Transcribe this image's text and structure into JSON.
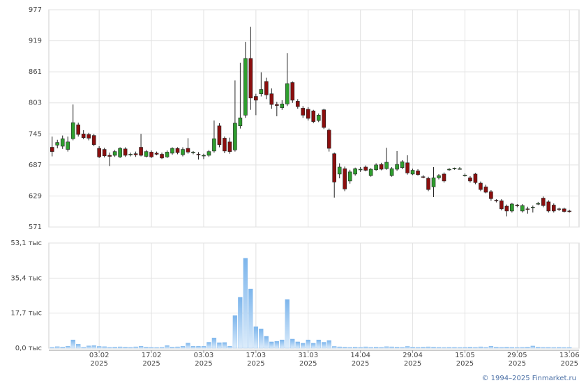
{
  "chart_data": {
    "type": "candlestick",
    "categories": [
      null,
      null,
      null,
      null,
      null,
      null,
      null,
      null,
      null,
      "03.02\n2025",
      null,
      null,
      null,
      null,
      null,
      null,
      null,
      null,
      null,
      "17.02\n2025",
      null,
      null,
      null,
      null,
      null,
      null,
      null,
      null,
      null,
      "03.03\n2025",
      null,
      null,
      null,
      null,
      null,
      null,
      null,
      null,
      null,
      "17.03\n2025",
      null,
      null,
      null,
      null,
      null,
      null,
      null,
      null,
      null,
      "31.03\n2025",
      null,
      null,
      null,
      null,
      null,
      null,
      null,
      null,
      null,
      "14.04\n2025",
      null,
      null,
      null,
      null,
      null,
      null,
      null,
      null,
      null,
      "29.04\n2025",
      null,
      null,
      null,
      null,
      null,
      null,
      null,
      null,
      null,
      "15.05\n2025",
      null,
      null,
      null,
      null,
      null,
      null,
      null,
      null,
      null,
      "29.05\n2025",
      null,
      null,
      null,
      null,
      null,
      null,
      null,
      null,
      null,
      "13.06\n2025"
    ],
    "open": [
      720,
      724,
      722,
      716,
      736,
      762,
      745,
      744,
      742,
      718,
      716,
      705,
      705,
      702,
      717,
      706,
      708,
      720,
      703,
      711,
      709,
      707,
      702,
      709,
      718,
      706,
      718,
      710,
      707,
      705,
      705,
      713,
      760,
      737,
      730,
      715,
      760,
      780,
      886,
      815,
      820,
      843,
      820,
      800,
      794,
      801,
      841,
      806,
      793,
      791,
      788,
      770,
      790,
      752,
      708,
      670,
      680,
      657,
      670,
      678,
      683,
      667,
      678,
      688,
      680,
      667,
      679,
      682,
      691,
      670,
      676,
      665,
      662,
      646,
      663,
      670,
      678,
      680,
      680,
      668,
      663,
      670,
      653,
      646,
      637,
      621,
      620,
      610,
      601,
      612,
      601,
      605,
      608,
      615,
      625,
      618,
      612,
      605,
      605,
      601
    ],
    "high": [
      740,
      734,
      742,
      740,
      800,
      766,
      752,
      747,
      745,
      722,
      719,
      710,
      715,
      720,
      720,
      710,
      712,
      745,
      715,
      714,
      712,
      710,
      714,
      720,
      720,
      720,
      737,
      713,
      711,
      708,
      715,
      770,
      765,
      740,
      738,
      845,
      878,
      917,
      945,
      820,
      860,
      850,
      830,
      805,
      808,
      896,
      843,
      810,
      797,
      795,
      790,
      783,
      792,
      755,
      710,
      690,
      684,
      678,
      682,
      683,
      686,
      681,
      690,
      691,
      719,
      683,
      713,
      696,
      705,
      680,
      679,
      668,
      665,
      683,
      670,
      673,
      681,
      682,
      683,
      671,
      666,
      672,
      656,
      650,
      640,
      623,
      623,
      613,
      616,
      614,
      614,
      609,
      611,
      618,
      628,
      621,
      615,
      607,
      607,
      603
    ],
    "low": [
      703,
      718,
      717,
      712,
      733,
      740,
      735,
      733,
      722,
      700,
      701,
      685,
      702,
      700,
      702,
      703,
      702,
      703,
      701,
      700,
      705,
      698,
      700,
      706,
      707,
      703,
      708,
      707,
      697,
      698,
      702,
      710,
      720,
      709,
      708,
      712,
      755,
      775,
      790,
      780,
      815,
      810,
      792,
      778,
      790,
      797,
      803,
      792,
      775,
      770,
      765,
      767,
      754,
      712,
      626,
      662,
      638,
      652,
      667,
      674,
      675,
      665,
      676,
      677,
      678,
      665,
      676,
      679,
      669,
      668,
      667,
      662,
      638,
      627,
      660,
      654,
      676,
      678,
      679,
      665,
      654,
      651,
      638,
      634,
      620,
      617,
      602,
      591,
      598,
      608,
      598,
      596,
      598,
      612,
      608,
      598,
      598,
      601,
      598,
      598
    ],
    "close": [
      712,
      729,
      736,
      730,
      766,
      744,
      738,
      737,
      725,
      702,
      704,
      703,
      712,
      718,
      705,
      707,
      706,
      705,
      712,
      702,
      707,
      700,
      711,
      718,
      710,
      716,
      711,
      711,
      706,
      705,
      712,
      736,
      725,
      713,
      712,
      765,
      775,
      886,
      812,
      808,
      828,
      818,
      800,
      798,
      801,
      839,
      808,
      796,
      780,
      774,
      768,
      780,
      757,
      718,
      655,
      683,
      642,
      674,
      680,
      679,
      677,
      679,
      687,
      679,
      692,
      680,
      688,
      693,
      672,
      677,
      669,
      664,
      641,
      663,
      667,
      657,
      679,
      681,
      680,
      668,
      657,
      654,
      641,
      636,
      624,
      620,
      605,
      601,
      614,
      611,
      611,
      604,
      608,
      615,
      611,
      601,
      601,
      604,
      600,
      600
    ],
    "up_color": "#2e9e2e",
    "down_color": "#8b0e0e",
    "ylim": [
      571,
      977
    ],
    "yticks": [
      571,
      629,
      687,
      745,
      803,
      861,
      919,
      977
    ],
    "grid": true,
    "volume": {
      "type": "bar",
      "color": "#7cb5ec",
      "values": [
        0.5,
        0.8,
        0.6,
        1.0,
        4.2,
        2.0,
        0.5,
        1.2,
        1.3,
        0.9,
        0.8,
        0.5,
        0.6,
        0.7,
        0.6,
        0.5,
        0.7,
        1.0,
        0.6,
        0.5,
        0.4,
        0.5,
        1.3,
        0.6,
        0.7,
        1.0,
        2.6,
        1.0,
        1.0,
        1.0,
        3.0,
        5.2,
        2.8,
        2.9,
        1.0,
        16.5,
        25.7,
        45.4,
        29.9,
        10.9,
        9.8,
        6.0,
        3.2,
        3.5,
        4.2,
        24.6,
        4.6,
        3.2,
        2.5,
        4.2,
        2.5,
        4.2,
        3.0,
        3.9,
        0.9,
        0.7,
        0.6,
        0.5,
        0.6,
        0.5,
        0.7,
        0.5,
        0.6,
        0.5,
        0.8,
        0.7,
        0.6,
        0.5,
        0.9,
        0.6,
        0.5,
        0.6,
        0.7,
        0.6,
        0.5,
        0.4,
        0.5,
        0.5,
        0.4,
        0.5,
        0.6,
        0.5,
        0.7,
        0.5,
        1.0,
        0.6,
        0.5,
        0.6,
        0.5,
        0.4,
        0.5,
        0.6,
        1.1,
        0.6,
        0.5,
        0.5,
        0.4,
        0.5,
        0.4,
        0.4
      ],
      "ylim": [
        0,
        53.1
      ],
      "yticks": [
        {
          "value": 0,
          "label": "0,0 тыс"
        },
        {
          "value": 17.7,
          "label": "17,7 тыс"
        },
        {
          "value": 35.4,
          "label": "35,4 тыс"
        },
        {
          "value": 53.1,
          "label": "53,1 тыс"
        }
      ]
    },
    "credit": "© 1994–2025 Finmarket.ru"
  }
}
